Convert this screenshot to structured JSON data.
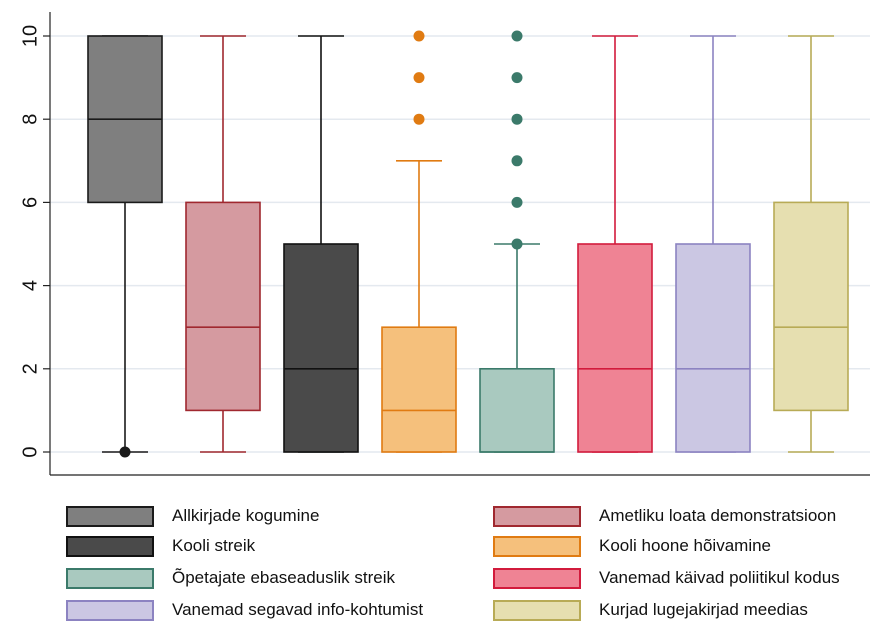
{
  "chart_data": {
    "type": "box",
    "ylim": [
      0,
      10
    ],
    "yticks": [
      "0",
      "2",
      "4",
      "6",
      "8",
      "10"
    ],
    "grid": true,
    "legend_position": "bottom",
    "series": [
      {
        "name": "Allkirjade kogumine",
        "min": 0,
        "q1": 6,
        "median": 8,
        "q3": 10,
        "max": 10,
        "outliers": [
          0
        ],
        "fill": "#7f7f7f",
        "stroke": "#1a1a1a"
      },
      {
        "name": "Ametliku loata demonstratsioon",
        "min": 0,
        "q1": 1,
        "median": 3,
        "q3": 6,
        "max": 10,
        "outliers": [],
        "fill": "#d59aa0",
        "stroke": "#a0282f"
      },
      {
        "name": "Kooli streik",
        "min": 0,
        "q1": 0,
        "median": 2,
        "q3": 5,
        "max": 10,
        "outliers": [],
        "fill": "#4a4a4a",
        "stroke": "#111111"
      },
      {
        "name": "Kooli hoone hõivamine",
        "min": 0,
        "q1": 0,
        "median": 1,
        "q3": 3,
        "max": 7,
        "outliers": [
          8,
          9,
          10
        ],
        "fill": "#f5c07c",
        "stroke": "#e07b12"
      },
      {
        "name": "Õpetajate ebaseaduslik streik",
        "min": 0,
        "q1": 0,
        "median": 0,
        "q3": 2,
        "max": 5,
        "outliers": [
          5,
          6,
          7,
          8,
          9,
          10
        ],
        "fill": "#a9c9bf",
        "stroke": "#3b7a6a"
      },
      {
        "name": "Vanemad käivad poliitikul kodus",
        "min": 0,
        "q1": 0,
        "median": 2,
        "q3": 5,
        "max": 10,
        "outliers": [],
        "fill": "#ef8394",
        "stroke": "#d21b3c"
      },
      {
        "name": "Vanemad segavad info-kohtumist",
        "min": 0,
        "q1": 0,
        "median": 2,
        "q3": 5,
        "max": 10,
        "outliers": [],
        "fill": "#cbc7e3",
        "stroke": "#8c83c1"
      },
      {
        "name": "Kurjad lugejakirjad meedias",
        "min": 0,
        "q1": 1,
        "median": 3,
        "q3": 6,
        "max": 10,
        "outliers": [],
        "fill": "#e6dfb0",
        "stroke": "#b8ab56"
      }
    ]
  }
}
